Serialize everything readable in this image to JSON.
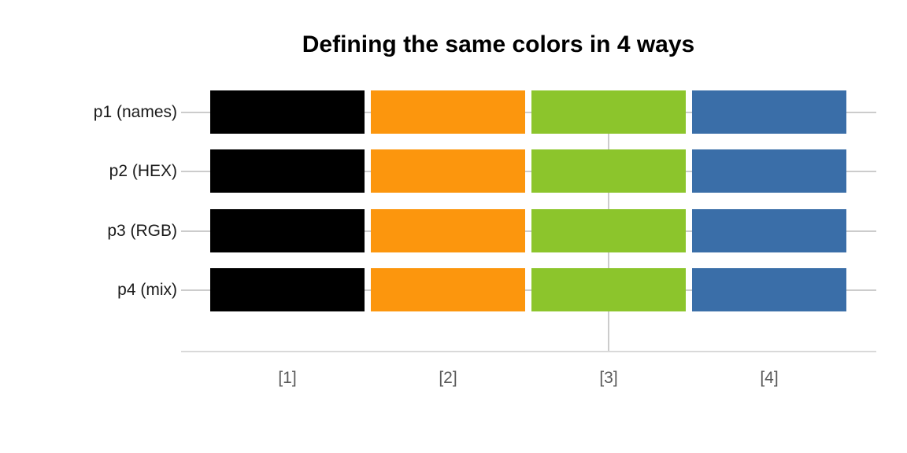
{
  "title": "Defining the same colors in 4 ways",
  "style": {
    "title_color": "#000000",
    "y_label_color": "#1a1a1a",
    "x_tick_label_color": "#595959",
    "axis_line_color": "#d9d9d9",
    "gridline_color": "#cccccc",
    "background_color": "#ffffff"
  },
  "chart_data": {
    "type": "bar",
    "orientation": "horizontal",
    "title": "Defining the same colors in 4 ways",
    "categories_y": [
      "p1 (names)",
      "p2 (HEX)",
      "p3 (RGB)",
      "p4 (mix)"
    ],
    "x_tick_labels": [
      "[1]",
      "[2]",
      "[3]",
      "[4]"
    ],
    "rows": [
      {
        "label": "p1 (names)",
        "values": [
          1,
          1,
          1,
          1
        ]
      },
      {
        "label": "p2 (HEX)",
        "values": [
          1,
          1,
          1,
          1
        ]
      },
      {
        "label": "p3 (RGB)",
        "values": [
          1,
          1,
          1,
          1
        ]
      },
      {
        "label": "p4 (mix)",
        "values": [
          1,
          1,
          1,
          1
        ]
      }
    ],
    "bar_colors": [
      "#000000",
      "#fc960d",
      "#8cc52c",
      "#3a6ea8"
    ],
    "bar_color_names": [
      "black",
      "orange",
      "yellow-green",
      "steel-blue"
    ],
    "legend": "none",
    "grid": {
      "horizontal_gridlines_at_each_row": true,
      "vertical_gridline_at_label": "[3]",
      "vertical_gridline_index": 2
    }
  }
}
